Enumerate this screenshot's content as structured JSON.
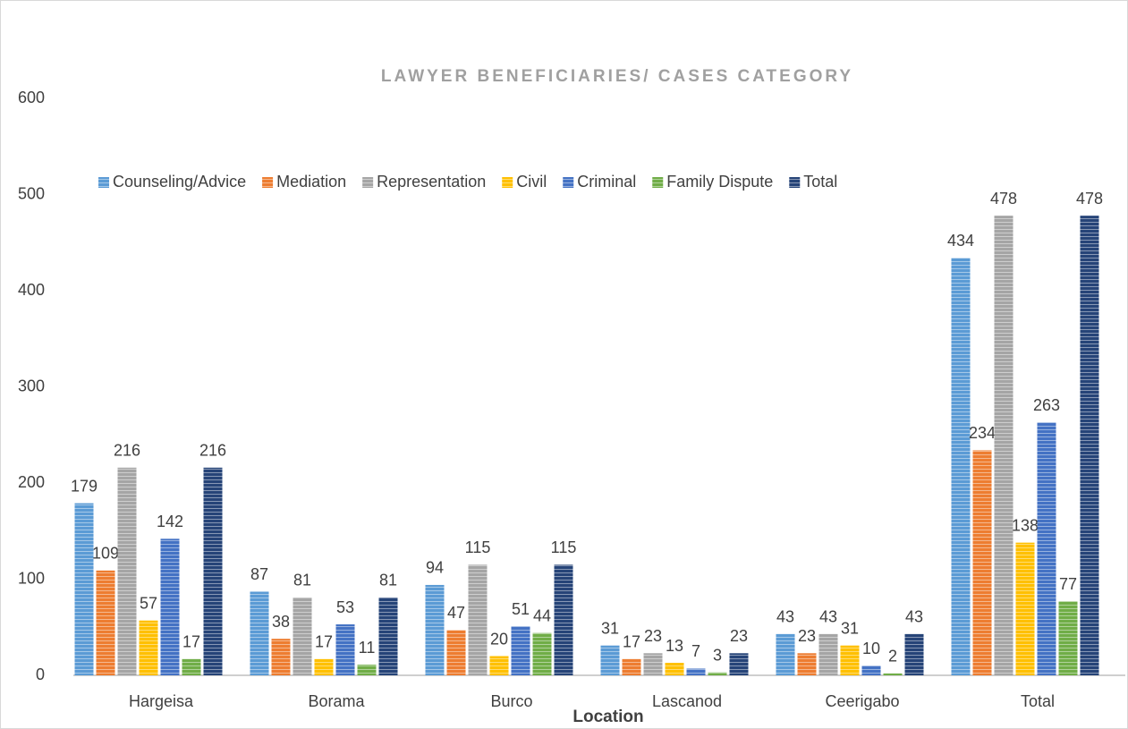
{
  "chart_data": {
    "type": "bar",
    "title": "LAWYER BENEFICIARIES/ CASES CATEGORY",
    "x_label": "Location",
    "categories": [
      "Hargeisa",
      "Borama",
      "Burco",
      "Lascanod",
      "Ceerigabo",
      "Total"
    ],
    "series": [
      {
        "name": "Counseling/Advice",
        "color": "#5b9bd5",
        "values": [
          179,
          87,
          94,
          31,
          43,
          434
        ]
      },
      {
        "name": "Mediation",
        "color": "#ed7d31",
        "values": [
          109,
          38,
          47,
          17,
          23,
          234
        ]
      },
      {
        "name": "Representation",
        "color": "#a5a5a5",
        "values": [
          216,
          81,
          115,
          23,
          43,
          478
        ]
      },
      {
        "name": "Civil",
        "color": "#ffc000",
        "values": [
          57,
          17,
          20,
          13,
          31,
          138
        ]
      },
      {
        "name": "Criminal",
        "color": "#4472c4",
        "values": [
          142,
          53,
          51,
          7,
          10,
          263
        ]
      },
      {
        "name": "Family Dispute",
        "color": "#70ad47",
        "values": [
          17,
          11,
          44,
          3,
          2,
          77
        ]
      },
      {
        "name": "Total",
        "color": "#264478",
        "values": [
          216,
          81,
          115,
          23,
          43,
          478
        ]
      }
    ],
    "ylim": [
      0,
      600
    ],
    "yticks": [
      0,
      100,
      200,
      300,
      400,
      500,
      600
    ],
    "grid": false,
    "legend": "top",
    "data_labels": true
  }
}
